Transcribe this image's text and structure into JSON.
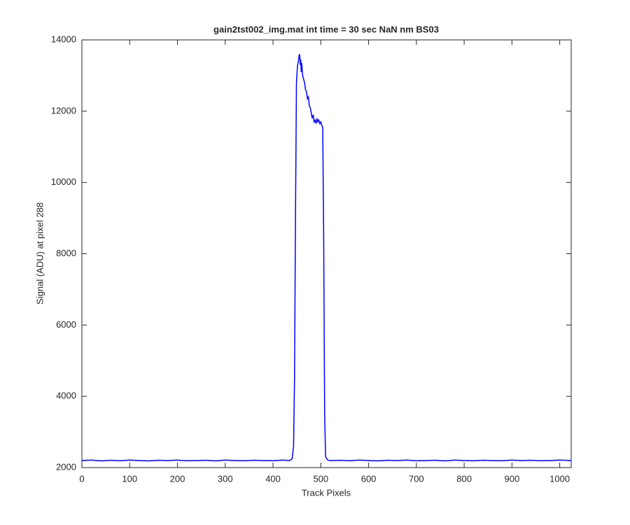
{
  "chart_data": {
    "type": "line",
    "title": "gain2tst002_img.mat int time = 30 sec  NaN nm BS03",
    "x_label": "Track Pixels",
    "y_label": "Signal (ADU) at pixel 288",
    "x": [
      0,
      20,
      40,
      60,
      80,
      100,
      120,
      140,
      160,
      180,
      200,
      220,
      240,
      260,
      280,
      300,
      320,
      340,
      360,
      380,
      400,
      420,
      435,
      440,
      443,
      445,
      447,
      449,
      451,
      453,
      455,
      456,
      457,
      458,
      459,
      460,
      462,
      464,
      466,
      468,
      470,
      472,
      474,
      476,
      478,
      480,
      482,
      484,
      486,
      488,
      490,
      492,
      494,
      496,
      498,
      500,
      502,
      504,
      506,
      508,
      510,
      515,
      520,
      540,
      560,
      580,
      600,
      620,
      640,
      660,
      680,
      700,
      720,
      740,
      760,
      780,
      800,
      820,
      840,
      860,
      880,
      900,
      920,
      940,
      960,
      980,
      1000,
      1024
    ],
    "series": [
      {
        "name": "signal",
        "color": "#0000ff",
        "values": [
          2200,
          2210,
          2190,
          2205,
          2195,
          2210,
          2200,
          2190,
          2205,
          2200,
          2210,
          2195,
          2200,
          2205,
          2190,
          2210,
          2200,
          2195,
          2205,
          2200,
          2195,
          2210,
          2200,
          2250,
          2600,
          4500,
          9000,
          12800,
          13250,
          13400,
          13600,
          13550,
          13300,
          13450,
          13100,
          13350,
          13000,
          12900,
          12800,
          12600,
          12550,
          12350,
          12400,
          12150,
          12100,
          11950,
          11800,
          11900,
          11700,
          11750,
          11650,
          11800,
          11700,
          11750,
          11650,
          11700,
          11600,
          11550,
          8500,
          3500,
          2300,
          2210,
          2200,
          2205,
          2195,
          2210,
          2200,
          2190,
          2205,
          2200,
          2210,
          2195,
          2200,
          2205,
          2190,
          2210,
          2200,
          2195,
          2205,
          2200,
          2195,
          2210,
          2200,
          2205,
          2195,
          2200,
          2210,
          2200
        ]
      }
    ],
    "xlim": [
      0,
      1024
    ],
    "xticks": [
      0,
      100,
      200,
      300,
      400,
      500,
      600,
      700,
      800,
      900,
      1000
    ],
    "ylim": [
      2000,
      14000
    ],
    "yticks": [
      2000,
      4000,
      6000,
      8000,
      10000,
      12000,
      14000
    ]
  }
}
